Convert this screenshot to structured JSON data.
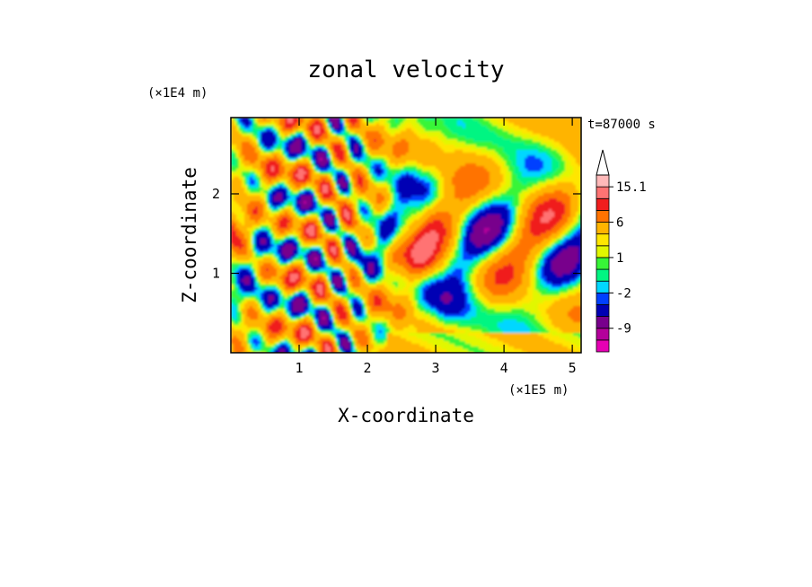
{
  "chart_data": {
    "type": "heatmap",
    "title": "zonal velocity",
    "xlabel": "X-coordinate",
    "ylabel": "Z-coordinate",
    "x_unit": "(×1E5 m)",
    "y_unit": "(×1E4 m)",
    "time_label": "t=87000 s",
    "xlim": [
      0,
      5.13
    ],
    "ylim": [
      0,
      2.96
    ],
    "x_ticks": [
      "1",
      "2",
      "3",
      "4",
      "5"
    ],
    "y_ticks": [
      "1",
      "2"
    ],
    "colorbar": {
      "levels": [
        -15,
        -12,
        -9,
        -6,
        -3,
        -2,
        -1,
        0,
        1,
        2,
        3,
        6,
        9,
        12,
        15.1
      ],
      "labels": [
        "15.1",
        "6",
        "1",
        "-2",
        "-9"
      ],
      "colors": [
        "#e600b4",
        "#b4009b",
        "#78008c",
        "#0000b4",
        "#0040ff",
        "#00d7ff",
        "#00f582",
        "#37f537",
        "#e1f700",
        "#ffe600",
        "#ffb400",
        "#ff7300",
        "#f01e1e",
        "#ff7373",
        "#ffb9b9"
      ],
      "extend": "max"
    }
  }
}
